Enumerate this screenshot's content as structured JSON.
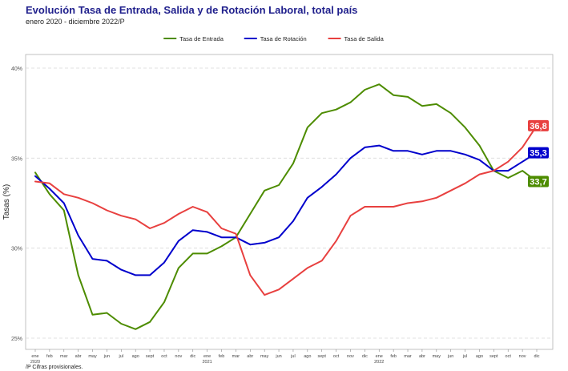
{
  "chart_data": {
    "type": "line",
    "title": "Evolución Tasa de Entrada, Salida y de Rotación Laboral, total país",
    "subtitle": "enero 2020 - diciembre 2022/P",
    "footnote": "/P Cifras provisionales.",
    "ylabel": "Tasas (%)",
    "ylim": [
      25,
      40
    ],
    "yticks": [
      "25%",
      "30%",
      "35%",
      "40%"
    ],
    "grid": true,
    "legend_position": "top",
    "x_ticks": [
      "ene",
      "feb",
      "mar",
      "abr",
      "may",
      "jun",
      "jul",
      "ago",
      "sept",
      "oct",
      "nov",
      "dic",
      "ene",
      "feb",
      "mar",
      "abr",
      "may",
      "jun",
      "jul",
      "ago",
      "sept",
      "oct",
      "nov",
      "dic",
      "ene",
      "feb",
      "mar",
      "abr",
      "may",
      "jun",
      "jul",
      "ago",
      "sept",
      "oct",
      "nov",
      "dic"
    ],
    "year_labels": [
      {
        "index": 0,
        "label": "2020"
      },
      {
        "index": 12,
        "label": "2021"
      },
      {
        "index": 24,
        "label": "2022"
      }
    ],
    "series": [
      {
        "name": "Tasa de Entrada",
        "color": "#4d8c00",
        "values": [
          34.2,
          33.0,
          32.1,
          28.5,
          26.3,
          26.4,
          25.8,
          25.5,
          25.9,
          27.0,
          28.9,
          29.7,
          29.7,
          30.1,
          30.6,
          31.9,
          33.2,
          33.5,
          34.7,
          36.7,
          37.5,
          37.7,
          38.1,
          38.8,
          39.1,
          38.5,
          38.4,
          37.9,
          38.0,
          37.5,
          36.7,
          35.7,
          34.3,
          33.9,
          34.3,
          33.7
        ],
        "end_label": "33,7"
      },
      {
        "name": "Tasa de Rotación",
        "color": "#0000cc",
        "values": [
          34.0,
          33.3,
          32.5,
          30.7,
          29.4,
          29.3,
          28.8,
          28.5,
          28.5,
          29.2,
          30.4,
          31.0,
          30.9,
          30.6,
          30.6,
          30.2,
          30.3,
          30.6,
          31.5,
          32.8,
          33.4,
          34.1,
          35.0,
          35.6,
          35.7,
          35.4,
          35.4,
          35.2,
          35.4,
          35.4,
          35.2,
          34.9,
          34.3,
          34.3,
          34.8,
          35.3
        ],
        "end_label": "35,3"
      },
      {
        "name": "Tasa de Salida",
        "color": "#e8403f",
        "values": [
          33.7,
          33.6,
          33.0,
          32.8,
          32.5,
          32.1,
          31.8,
          31.6,
          31.1,
          31.4,
          31.9,
          32.3,
          32.0,
          31.1,
          30.8,
          28.5,
          27.4,
          27.7,
          28.3,
          28.9,
          29.3,
          30.4,
          31.8,
          32.3,
          32.3,
          32.3,
          32.5,
          32.6,
          32.8,
          33.2,
          33.6,
          34.1,
          34.3,
          34.8,
          35.6,
          36.8
        ],
        "end_label": "36,8"
      }
    ]
  }
}
